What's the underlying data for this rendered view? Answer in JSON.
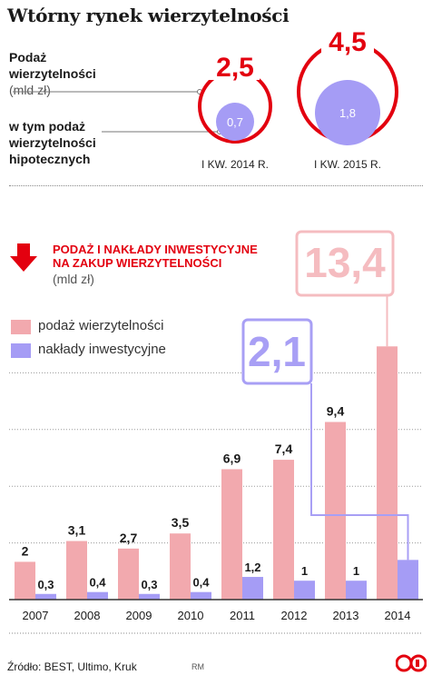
{
  "title": "Wtórny rynek wierzytelności",
  "top": {
    "label_supply": "Podaż\nwierzytelności",
    "label_supply_unit": "(mld zł)",
    "label_mortgage": "w tym podaż\nwierzytelności\nhipotecznych",
    "circles": [
      {
        "period": "I KW. 2014 R.",
        "total": "2,5",
        "mortgage": "0,7",
        "total_value": 2.5,
        "mortgage_value": 0.7
      },
      {
        "period": "I KW. 2015 R.",
        "total": "4,5",
        "mortgage": "1,8",
        "total_value": 4.5,
        "mortgage_value": 1.8
      }
    ]
  },
  "section": {
    "heading": "PODAŻ I NAKŁADY INWESTYCYJNE\nNA ZAKUP WIERZYTELNOŚCI",
    "unit": "(mld zł)"
  },
  "legend": {
    "supply": "podaż wierzytelności",
    "investment": "nakłady inwestycyjne"
  },
  "chart_data": {
    "type": "bar",
    "categories": [
      "2007",
      "2008",
      "2009",
      "2010",
      "2011",
      "2012",
      "2013",
      "2014"
    ],
    "series": [
      {
        "name": "podaż wierzytelności",
        "values": [
          2,
          3.1,
          2.7,
          3.5,
          6.9,
          7.4,
          9.4,
          13.4
        ],
        "labels": [
          "2",
          "3,1",
          "2,7",
          "3,5",
          "6,9",
          "7,4",
          "9,4",
          "13,4"
        ],
        "color": "#f2a9ae"
      },
      {
        "name": "nakłady inwestycyjne",
        "values": [
          0.3,
          0.4,
          0.3,
          0.4,
          1.2,
          1,
          1,
          2.1
        ],
        "labels": [
          "0,3",
          "0,4",
          "0,3",
          "0,4",
          "1,2",
          "1",
          "1",
          "2,1"
        ],
        "color": "#a59cf5"
      }
    ],
    "callouts": [
      {
        "series": "podaż wierzytelności",
        "category": "2014",
        "text": "13,4"
      },
      {
        "series": "nakłady inwestycyjne",
        "category": "2014",
        "text": "2,1"
      }
    ],
    "ylim": [
      0,
      14
    ],
    "grid": true,
    "legend_position": "top-left"
  },
  "source": "Źródło: BEST, Ultimo, Kruk",
  "credit": "RM",
  "colors": {
    "red": "#e3000f",
    "pink": "#f2a9ae",
    "purple": "#a59cf5",
    "callout_pink": "#f5bcc0",
    "callout_purple": "#a89ff5"
  }
}
